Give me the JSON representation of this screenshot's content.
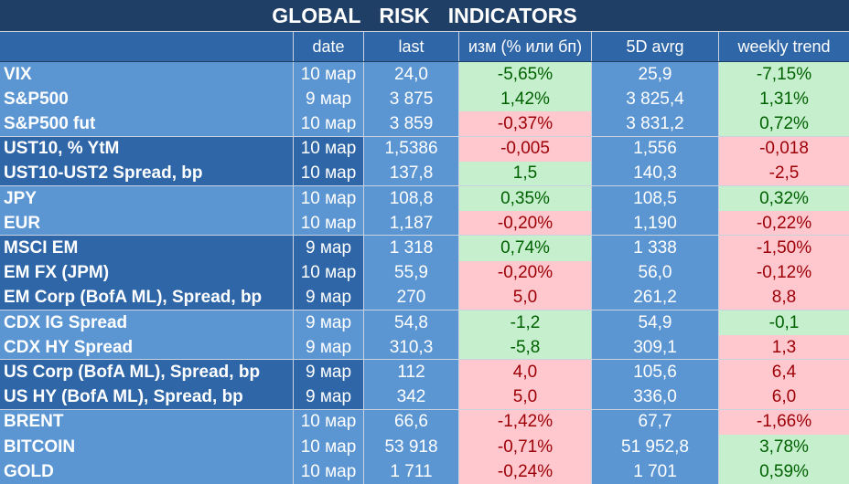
{
  "title": "GLOBAL   RISK   INDICATORS",
  "headers": [
    "",
    "date",
    "last",
    "изм (% или бп)",
    "5D avrg",
    "weekly trend"
  ],
  "groups": [
    {
      "rows": [
        {
          "name": "VIX",
          "date": "10 мар",
          "last": "24,0",
          "chg": "-5,65%",
          "chg_sign": "pos",
          "avg": "25,9",
          "trend": "-7,15%",
          "trend_sign": "pos"
        },
        {
          "name": "S&P500",
          "date": "9 мар",
          "last": "3 875",
          "chg": "1,42%",
          "chg_sign": "pos",
          "avg": "3 825,4",
          "trend": "1,31%",
          "trend_sign": "pos"
        },
        {
          "name": "S&P500 fut",
          "date": "10 мар",
          "last": "3 859",
          "chg": "-0,37%",
          "chg_sign": "neg",
          "avg": "3 831,2",
          "trend": "0,72%",
          "trend_sign": "pos"
        }
      ]
    },
    {
      "rows": [
        {
          "name": "UST10, % YtM",
          "date": "10 мар",
          "last": "1,5386",
          "chg": "-0,005",
          "chg_sign": "neg",
          "avg": "1,556",
          "trend": "-0,018",
          "trend_sign": "neg"
        },
        {
          "name": "UST10-UST2 Spread, bp",
          "date": "10 мар",
          "last": "137,8",
          "chg": "1,5",
          "chg_sign": "pos",
          "avg": "140,3",
          "trend": "-2,5",
          "trend_sign": "neg"
        }
      ]
    },
    {
      "rows": [
        {
          "name": "JPY",
          "date": "10 мар",
          "last": "108,8",
          "chg": "0,35%",
          "chg_sign": "pos",
          "avg": "108,5",
          "trend": "0,32%",
          "trend_sign": "pos"
        },
        {
          "name": "EUR",
          "date": "10 мар",
          "last": "1,187",
          "chg": "-0,20%",
          "chg_sign": "neg",
          "avg": "1,190",
          "trend": "-0,22%",
          "trend_sign": "neg"
        }
      ]
    },
    {
      "rows": [
        {
          "name": "MSCI EM",
          "date": "9 мар",
          "last": "1 318",
          "chg": "0,74%",
          "chg_sign": "pos",
          "avg": "1 338",
          "trend": "-1,50%",
          "trend_sign": "neg"
        },
        {
          "name": "EM FX (JPM)",
          "date": "10 мар",
          "last": "55,9",
          "chg": "-0,20%",
          "chg_sign": "neg",
          "avg": "56,0",
          "trend": "-0,12%",
          "trend_sign": "neg"
        },
        {
          "name": "EM Corp (BofA ML), Spread, bp",
          "date": "9 мар",
          "last": "270",
          "chg": "5,0",
          "chg_sign": "neg",
          "avg": "261,2",
          "trend": "8,8",
          "trend_sign": "neg"
        }
      ]
    },
    {
      "rows": [
        {
          "name": "CDX IG Spread",
          "date": "9 мар",
          "last": "54,8",
          "chg": "-1,2",
          "chg_sign": "pos",
          "avg": "54,9",
          "trend": "-0,1",
          "trend_sign": "pos"
        },
        {
          "name": "CDX HY Spread",
          "date": "9 мар",
          "last": "310,3",
          "chg": "-5,8",
          "chg_sign": "pos",
          "avg": "309,1",
          "trend": "1,3",
          "trend_sign": "neg"
        }
      ]
    },
    {
      "rows": [
        {
          "name": "US Corp (BofA ML), Spread, bp",
          "date": "9 мар",
          "last": "112",
          "chg": "4,0",
          "chg_sign": "neg",
          "avg": "105,6",
          "trend": "6,4",
          "trend_sign": "neg"
        },
        {
          "name": "US HY (BofA ML), Spread, bp",
          "date": "9 мар",
          "last": "342",
          "chg": "5,0",
          "chg_sign": "neg",
          "avg": "336,0",
          "trend": "6,0",
          "trend_sign": "neg"
        }
      ]
    },
    {
      "rows": [
        {
          "name": "BRENT",
          "date": "10 мар",
          "last": "66,6",
          "chg": "-1,42%",
          "chg_sign": "neg",
          "avg": "67,7",
          "trend": "-1,66%",
          "trend_sign": "neg"
        },
        {
          "name": "BITCOIN",
          "date": "10 мар",
          "last": "53 918",
          "chg": "-0,71%",
          "chg_sign": "neg",
          "avg": "51 952,8",
          "trend": "3,78%",
          "trend_sign": "pos"
        },
        {
          "name": "GOLD",
          "date": "10 мар",
          "last": "1 711",
          "chg": "-0,24%",
          "chg_sign": "neg",
          "avg": "1 701",
          "trend": "0,59%",
          "trend_sign": "pos"
        }
      ]
    }
  ],
  "colors": {
    "light_band": "#5b96d3",
    "dark_band": "#2e66a8",
    "title_bg": "#1f3f66",
    "positive_bg": "#c6efce",
    "positive_text": "#006100",
    "negative_bg": "#ffc7ce",
    "negative_text": "#9c0006"
  }
}
